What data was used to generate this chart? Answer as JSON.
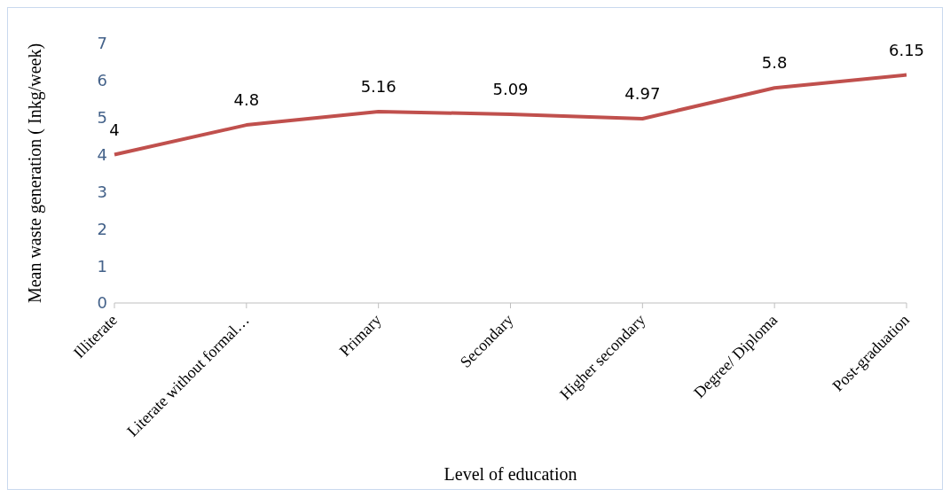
{
  "chart_data": {
    "type": "line",
    "xlabel": "Level of education",
    "ylabel": "Mean  waste generation ( Inkg/week)",
    "categories": [
      "Illiterate",
      "Literate without formal…",
      "Primary",
      "Secondary",
      "Higher secondary",
      "Degree/ Diploma",
      "Post-graduation"
    ],
    "values": [
      4,
      4.8,
      5.16,
      5.09,
      4.97,
      5.8,
      6.15
    ],
    "color": "#c0504d",
    "ylim": [
      0,
      7
    ],
    "yticks": [
      0,
      1,
      2,
      3,
      4,
      5,
      6,
      7
    ],
    "grid": false,
    "legend": false,
    "marker": "none",
    "line_style": "solid",
    "data_labels": true
  }
}
